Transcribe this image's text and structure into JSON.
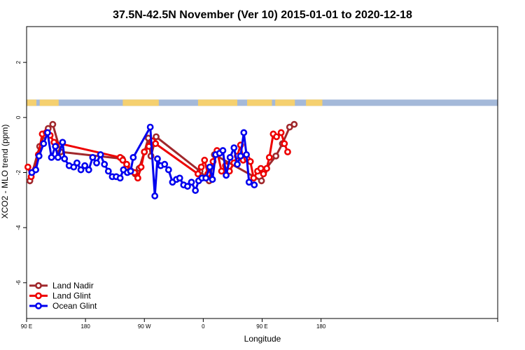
{
  "chart_data": {
    "type": "line",
    "title": "37.5N-42.5N November (Ver 10)   2015-01-01 to 2020-12-18",
    "xlabel": "Longitude",
    "ylabel": "XCO2 - MLO trend (ppm)",
    "xlim": [
      0,
      720
    ],
    "ylim": [
      -7.3,
      3.3
    ],
    "x_ticks": [
      {
        "value": 0,
        "label": "90 E"
      },
      {
        "value": 90,
        "label": "180"
      },
      {
        "value": 180,
        "label": "90 W"
      },
      {
        "value": 270,
        "label": "0"
      },
      {
        "value": 360,
        "label": "90 E"
      },
      {
        "value": 450,
        "label": "180"
      }
    ],
    "y_ticks": [
      {
        "value": 2,
        "label": "2"
      },
      {
        "value": 0,
        "label": "0"
      },
      {
        "value": -2,
        "label": "-2"
      },
      {
        "value": -4,
        "label": "-4"
      },
      {
        "value": -6,
        "label": "-6"
      }
    ],
    "legend_position": "bottom-left",
    "land_band": {
      "y_top": 0.65,
      "y_bottom": 0.42,
      "land_color": "#f5d06f",
      "ocean_color": "#a4b9d9",
      "land_ranges": [
        [
          0,
          15
        ],
        [
          20,
          49
        ],
        [
          147,
          202
        ],
        [
          262,
          322
        ],
        [
          337,
          375
        ],
        [
          380,
          410
        ],
        [
          427,
          452
        ]
      ]
    },
    "series": [
      {
        "name": "Land Nadir",
        "color": "#a0282c",
        "points": [
          [
            5,
            -2.3
          ],
          [
            20,
            -1.05
          ],
          [
            27,
            -0.65
          ],
          [
            33,
            -0.4
          ],
          [
            40,
            -0.25
          ],
          [
            52,
            -1.25
          ],
          [
            146,
            -1.5
          ],
          [
            153,
            -1.8
          ],
          [
            160,
            -1.95
          ],
          [
            166,
            -2.05
          ],
          [
            172,
            -1.85
          ],
          [
            180,
            -1.25
          ],
          [
            186,
            -0.75
          ],
          [
            190,
            -1.4
          ],
          [
            198,
            -0.7
          ],
          [
            265,
            -1.95
          ],
          [
            279,
            -2.3
          ],
          [
            287,
            -1.35
          ],
          [
            359,
            -2.3
          ],
          [
            363,
            -1.95
          ],
          [
            381,
            -1.4
          ],
          [
            391,
            -0.95
          ],
          [
            402,
            -0.35
          ],
          [
            409,
            -0.25
          ]
        ]
      },
      {
        "name": "Land Glint",
        "color": "#ee0000",
        "points": [
          [
            2,
            -1.8
          ],
          [
            7,
            -2.15
          ],
          [
            13,
            -1.9
          ],
          [
            18,
            -1.35
          ],
          [
            24,
            -0.6
          ],
          [
            30,
            -0.55
          ],
          [
            36,
            -0.65
          ],
          [
            42,
            -0.9
          ],
          [
            143,
            -1.45
          ],
          [
            147,
            -1.55
          ],
          [
            153,
            -1.7
          ],
          [
            158,
            -1.95
          ],
          [
            165,
            -2.0
          ],
          [
            170,
            -2.2
          ],
          [
            175,
            -1.8
          ],
          [
            180,
            -1.25
          ],
          [
            187,
            -1.05
          ],
          [
            192,
            -0.85
          ],
          [
            197,
            -0.95
          ],
          [
            262,
            -2.05
          ],
          [
            267,
            -1.8
          ],
          [
            272,
            -1.55
          ],
          [
            277,
            -2.05
          ],
          [
            285,
            -1.6
          ],
          [
            291,
            -1.2
          ],
          [
            298,
            -1.95
          ],
          [
            304,
            -1.75
          ],
          [
            310,
            -1.95
          ],
          [
            317,
            -1.65
          ],
          [
            322,
            -1.4
          ],
          [
            327,
            -1.0
          ],
          [
            331,
            -1.55
          ],
          [
            337,
            -1.5
          ],
          [
            342,
            -1.6
          ],
          [
            347,
            -2.2
          ],
          [
            353,
            -1.95
          ],
          [
            358,
            -1.85
          ],
          [
            362,
            -2.05
          ],
          [
            367,
            -1.85
          ],
          [
            371,
            -1.45
          ],
          [
            377,
            -0.6
          ],
          [
            382,
            -0.7
          ],
          [
            389,
            -0.55
          ],
          [
            394,
            -0.95
          ],
          [
            399,
            -1.25
          ]
        ]
      },
      {
        "name": "Ocean Glint",
        "color": "#0000ee",
        "points": [
          [
            8,
            -2.0
          ],
          [
            14,
            -1.9
          ],
          [
            19,
            -1.4
          ],
          [
            26,
            -0.95
          ],
          [
            32,
            -0.55
          ],
          [
            38,
            -1.45
          ],
          [
            44,
            -1.05
          ],
          [
            48,
            -1.45
          ],
          [
            55,
            -0.9
          ],
          [
            58,
            -1.5
          ],
          [
            65,
            -1.75
          ],
          [
            72,
            -1.8
          ],
          [
            77,
            -1.65
          ],
          [
            83,
            -1.9
          ],
          [
            89,
            -1.75
          ],
          [
            95,
            -1.9
          ],
          [
            101,
            -1.45
          ],
          [
            107,
            -1.65
          ],
          [
            113,
            -1.35
          ],
          [
            119,
            -1.7
          ],
          [
            125,
            -1.95
          ],
          [
            131,
            -2.15
          ],
          [
            137,
            -2.15
          ],
          [
            143,
            -2.2
          ],
          [
            148,
            -1.9
          ],
          [
            154,
            -2.0
          ],
          [
            159,
            -1.95
          ],
          [
            163,
            -1.45
          ],
          [
            189,
            -0.35
          ],
          [
            196,
            -2.85
          ],
          [
            200,
            -1.5
          ],
          [
            205,
            -1.75
          ],
          [
            211,
            -1.7
          ],
          [
            217,
            -1.9
          ],
          [
            223,
            -2.35
          ],
          [
            229,
            -2.25
          ],
          [
            234,
            -2.2
          ],
          [
            240,
            -2.45
          ],
          [
            246,
            -2.5
          ],
          [
            252,
            -2.35
          ],
          [
            258,
            -2.65
          ],
          [
            263,
            -2.3
          ],
          [
            268,
            -2.2
          ],
          [
            274,
            -2.2
          ],
          [
            280,
            -1.8
          ],
          [
            284,
            -2.25
          ],
          [
            289,
            -1.35
          ],
          [
            295,
            -1.3
          ],
          [
            300,
            -1.2
          ],
          [
            305,
            -2.1
          ],
          [
            311,
            -1.45
          ],
          [
            317,
            -1.1
          ],
          [
            322,
            -1.7
          ],
          [
            327,
            -1.4
          ],
          [
            332,
            -0.55
          ],
          [
            336,
            -1.35
          ],
          [
            340,
            -2.35
          ],
          [
            348,
            -2.45
          ]
        ]
      }
    ]
  }
}
